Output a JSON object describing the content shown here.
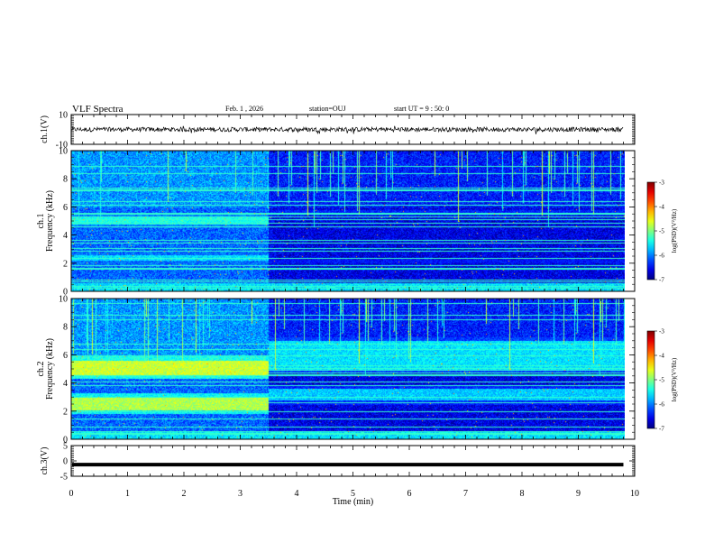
{
  "header": {
    "title": "VLF Spectra",
    "date": "Feb. 1 , 2026",
    "station": "station=OUJ",
    "start": "start UT = 9 : 50: 0"
  },
  "chart_data": {
    "type": "heatmap",
    "xlabel": "Time (min)",
    "xlim": [
      0,
      10
    ],
    "x_ticks": [
      "0",
      "1",
      "2",
      "3",
      "4",
      "5",
      "6",
      "7",
      "8",
      "9",
      "10"
    ],
    "panels": [
      {
        "name": "ch1-waveform",
        "type": "line",
        "ylabel": "ch.1(V)",
        "ylim": [
          -10,
          10
        ],
        "y_ticks": [
          "10",
          "-10"
        ],
        "signal_level": 0,
        "noise_amplitude": 1.5,
        "data_end_min": 9.8
      },
      {
        "name": "ch1-spectrogram",
        "type": "heatmap",
        "ylabel_top": "ch.1",
        "ylabel": "Frequency (kHz)",
        "ylim": [
          0,
          10
        ],
        "y_ticks": [
          "0",
          "2",
          "4",
          "6",
          "8",
          "10"
        ],
        "change_time_min": 3.5,
        "data_end_min": 9.8,
        "bands_before_change": [
          {
            "f_low": 4.8,
            "f_high": 5.3,
            "log_psd": -5.4
          },
          {
            "f_low": 2.2,
            "f_high": 2.6,
            "log_psd": -5.6
          }
        ],
        "bands_after_change": [
          {
            "f_low": 5.4,
            "f_high": 5.8,
            "log_psd": -6.4
          },
          {
            "f_low": 2.0,
            "f_high": 2.3,
            "log_psd": -6.5
          }
        ],
        "colorbar": {
          "label": "log(PSD)(V²/Hz)",
          "min": -7,
          "max": -3,
          "ticks": [
            "-3",
            "-4",
            "-5",
            "-6",
            "-7"
          ]
        }
      },
      {
        "name": "ch2-spectrogram",
        "type": "heatmap",
        "ylabel_top": "ch.2",
        "ylabel": "Frequency (kHz)",
        "ylim": [
          0,
          10
        ],
        "y_ticks": [
          "0",
          "2",
          "4",
          "6",
          "8",
          "10"
        ],
        "change_time_min": 3.5,
        "data_end_min": 9.8,
        "bands_before_change": [
          {
            "f_low": 4.6,
            "f_high": 5.6,
            "log_psd": -4.7
          },
          {
            "f_low": 2.1,
            "f_high": 3.0,
            "log_psd": -4.8
          }
        ],
        "bands_after_change": [
          {
            "f_low": 5.0,
            "f_high": 7.0,
            "log_psd": -5.6
          },
          {
            "f_low": 2.8,
            "f_high": 3.6,
            "log_psd": -5.7
          }
        ],
        "colorbar": {
          "label": "log(PSD)(V²/Hz)",
          "min": -7,
          "max": -3,
          "ticks": [
            "-3",
            "-4",
            "-5",
            "-6",
            "-7"
          ]
        }
      },
      {
        "name": "ch3-waveform",
        "type": "line",
        "ylabel": "ch.3(V)",
        "ylim": [
          -5,
          5
        ],
        "y_ticks": [
          "5",
          "0",
          "-5"
        ],
        "signal_level": -1.2,
        "data_end_min": 9.8
      }
    ]
  }
}
